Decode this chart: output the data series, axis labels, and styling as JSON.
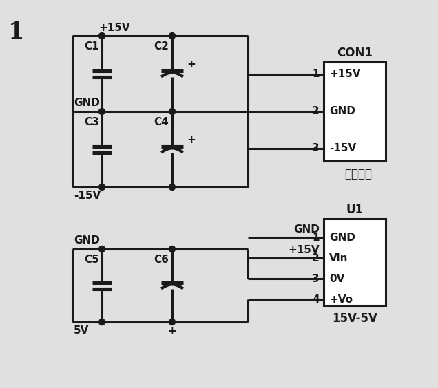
{
  "bg_color": "#e0e0e0",
  "line_color": "#1a1a1a",
  "line_width": 2.2,
  "fig_number": "1",
  "top_circuit": {
    "plus15v_label": "+15V",
    "gnd_label": "GND",
    "minus15v_label": "-15V",
    "c1_label": "C1",
    "c2_label": "C2",
    "c3_label": "C3",
    "c4_label": "C4",
    "con_label": "CON1",
    "con_pins": [
      "+15V",
      "GND",
      "-15V"
    ],
    "con_pin_nums": [
      "1",
      "2",
      "3"
    ],
    "con_sub_label": "电源接口"
  },
  "bottom_circuit": {
    "gnd_label": "GND",
    "plus15v_label": "+15V",
    "v5_label": "5V",
    "c5_label": "C5",
    "c6_label": "C6",
    "gnd1_label": "GND",
    "u1_label": "U1",
    "u1_pins": [
      "GND",
      "Vin",
      "0V",
      "+Vo"
    ],
    "u1_pin_nums": [
      "1",
      "2",
      "3",
      "4"
    ],
    "u1_sub_label": "15V-5V"
  }
}
